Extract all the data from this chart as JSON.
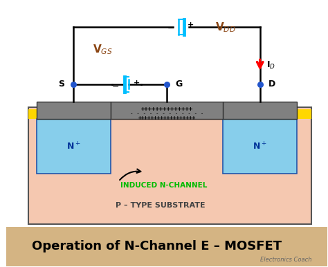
{
  "bg_color": "#ffffff",
  "title_text": "Operation of N-Channel E – MOSFET",
  "title_bg": "#d4b483",
  "title_fontsize": 13,
  "watermark": "Electronics Coach",
  "substrate_color": "#f5c8b0",
  "nplus_color": "#87ceeb",
  "gate_oxide_color": "#FFD700",
  "gate_metal_color": "#808080",
  "contact_metal_color": "#808080",
  "battery_color": "#00bfff",
  "vgs_color": "#8B4513",
  "label_S": "S",
  "label_G": "G",
  "label_D": "D",
  "label_VGS": "V$_{GS}$",
  "label_VDD": "V$_{DD}$",
  "label_ID": "I$_{D}$",
  "label_induced": "INDUCED N-CHANNEL",
  "label_substrate": "P – TYPE SUBSTRATE",
  "nplus_label": "N$^+$",
  "plus_gate": "++++++++++++++",
  "minus_oxide": "- - - - - - - - - - - -",
  "plus_channel": "++++++++++++++++++"
}
